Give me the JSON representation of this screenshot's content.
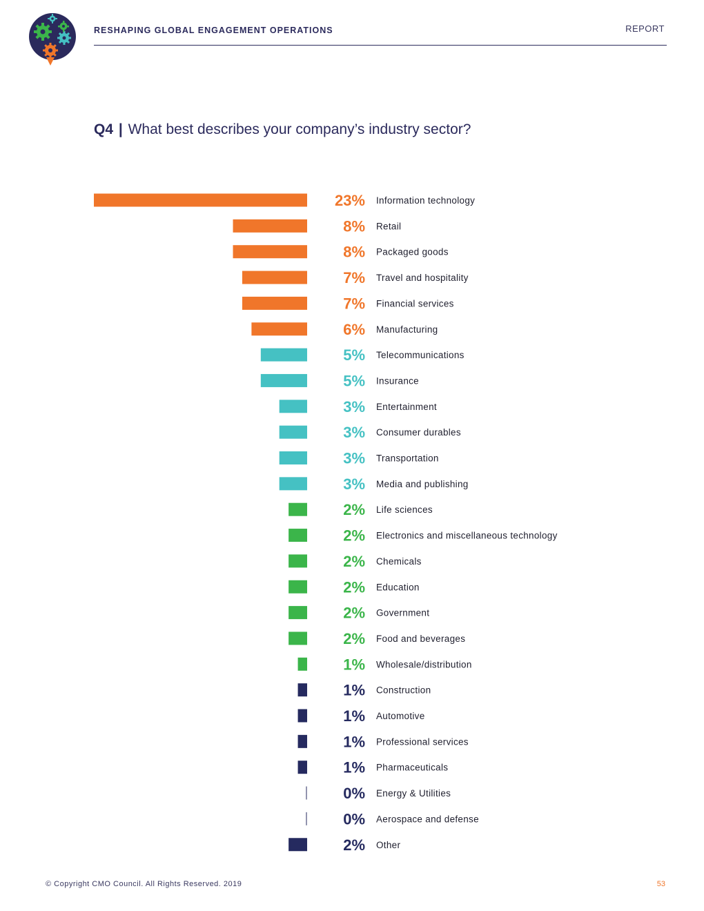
{
  "header": {
    "title": "RESHAPING GLOBAL ENGAGEMENT OPERATIONS",
    "report_label": "REPORT"
  },
  "question": {
    "number": "Q4",
    "separator": "|",
    "text": "What best describes your company’s industry sector?"
  },
  "colors": {
    "orange": "#f0762a",
    "teal": "#45c1c3",
    "green": "#3bb54a",
    "navy": "#252a5f"
  },
  "chart_data": {
    "type": "bar",
    "orientation": "horizontal",
    "title": "What best describes your company’s industry sector?",
    "unit": "%",
    "xlim": [
      0,
      23
    ],
    "categories": [
      "Information technology",
      "Retail",
      "Packaged goods",
      "Travel and hospitality",
      "Financial services",
      "Manufacturing",
      "Telecommunications",
      "Insurance",
      "Entertainment",
      "Consumer durables",
      "Transportation",
      "Media and publishing",
      "Life sciences",
      "Electronics and miscellaneous technology",
      "Chemicals",
      "Education",
      "Government",
      "Food and beverages",
      "Wholesale/distribution",
      "Construction",
      "Automotive",
      "Professional services",
      "Pharmaceuticals",
      "Energy & Utilities",
      "Aerospace and defense",
      "Other"
    ],
    "values": [
      23,
      8,
      8,
      7,
      7,
      6,
      5,
      5,
      3,
      3,
      3,
      3,
      2,
      2,
      2,
      2,
      2,
      2,
      1,
      1,
      1,
      1,
      1,
      0,
      0,
      2
    ],
    "labels": [
      "23%",
      "8%",
      "8%",
      "7%",
      "7%",
      "6%",
      "5%",
      "5%",
      "3%",
      "3%",
      "3%",
      "3%",
      "2%",
      "2%",
      "2%",
      "2%",
      "2%",
      "2%",
      "1%",
      "1%",
      "1%",
      "1%",
      "1%",
      "0%",
      "0%",
      "2%"
    ],
    "color_groups": [
      "orange",
      "orange",
      "orange",
      "orange",
      "orange",
      "orange",
      "teal",
      "teal",
      "teal",
      "teal",
      "teal",
      "teal",
      "green",
      "green",
      "green",
      "green",
      "green",
      "green",
      "green",
      "navy",
      "navy",
      "navy",
      "navy",
      "navy",
      "navy",
      "navy"
    ]
  },
  "footer": {
    "copyright": "© Copyright CMO Council. All Rights Reserved. 2019",
    "page_number": "53"
  }
}
